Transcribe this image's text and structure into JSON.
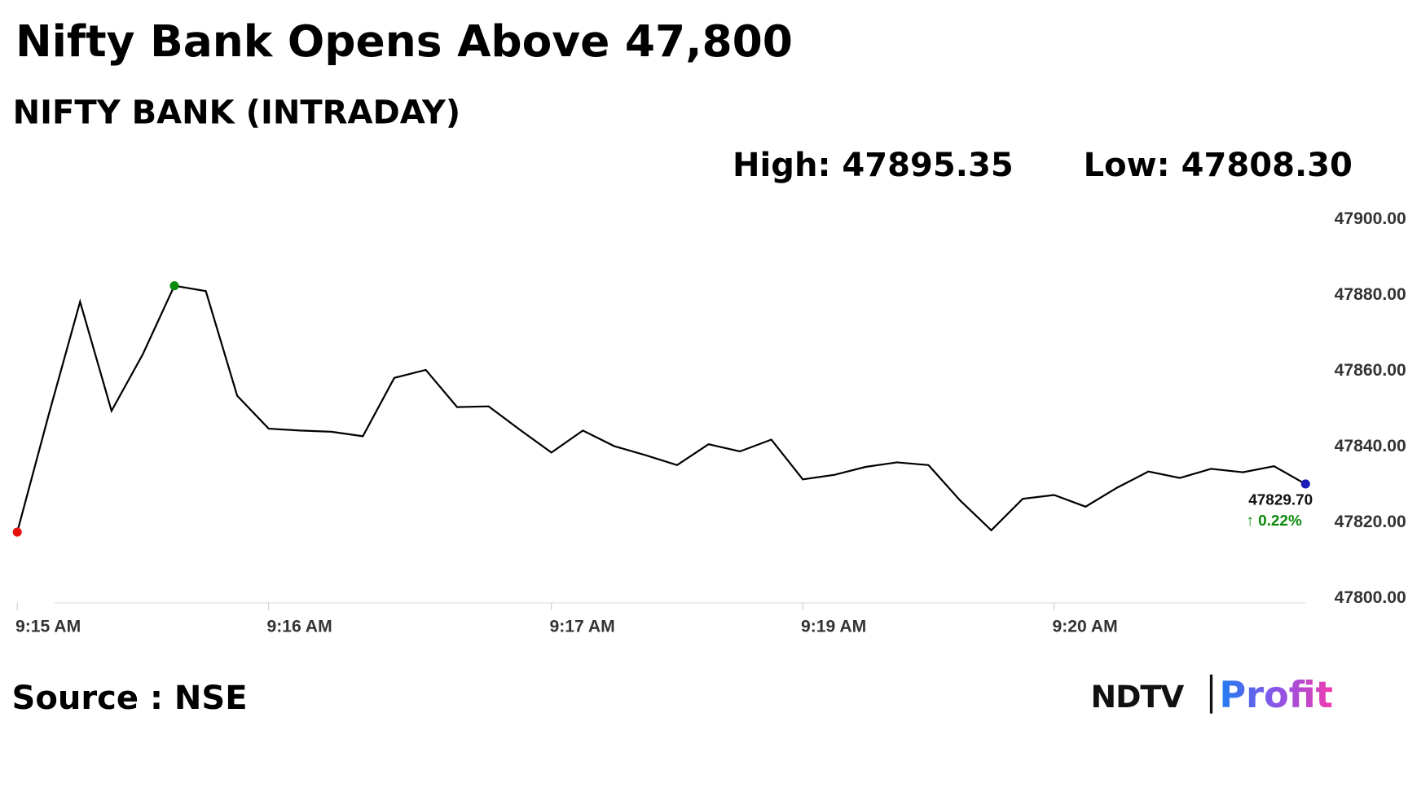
{
  "chart_data": {
    "type": "line",
    "title": "Nifty Bank Opens Above 47,800",
    "subtitle": "NIFTY BANK (INTRADAY)",
    "high_label": "High: 47895.35",
    "low_label": "Low: 47808.30",
    "last_value_label": "47829.70",
    "change_label": "↑ 0.22%",
    "source": "Source : NSE",
    "logo": {
      "left": "NDTV",
      "right": "Profit"
    },
    "categories": [
      "9:15 AM",
      null,
      null,
      null,
      null,
      null,
      null,
      null,
      "9:16 AM",
      null,
      null,
      null,
      null,
      null,
      null,
      null,
      null,
      "9:17 AM",
      null,
      null,
      null,
      null,
      null,
      null,
      null,
      "9:19 AM",
      null,
      null,
      null,
      null,
      null,
      null,
      null,
      "9:20 AM",
      null,
      null,
      null,
      null,
      null,
      null,
      null,
      null
    ],
    "series": [
      {
        "color": "#000000",
        "values": [
          47817,
          47848,
          47877.8,
          47849,
          47864,
          47882,
          47880.6,
          47853,
          47844.3,
          47843.8,
          47843.5,
          47842.3,
          47857.7,
          47859.8,
          47850,
          47850.2,
          47844,
          47838,
          47843.8,
          47839.7,
          47837.3,
          47834.7,
          47840.2,
          47838.3,
          47841.4,
          47830.9,
          47832.1,
          47834.2,
          47835.4,
          47834.7,
          47825.4,
          47817.5,
          47825.8,
          47826.8,
          47823.7,
          47828.7,
          47833,
          47831.3,
          47833.7,
          47832.8,
          47834.4,
          47829.7
        ]
      }
    ],
    "marker_colors": {
      "first": "#e8120c",
      "max": "#0a8a0a",
      "last": "#1a1ab8"
    },
    "change_color": "#0a8a0a",
    "ylim": [
      47800,
      47900
    ],
    "yticks": [
      {
        "value": 47800,
        "label": "47800.00"
      },
      {
        "value": 47820,
        "label": "47820.00"
      },
      {
        "value": 47840,
        "label": "47840.00"
      },
      {
        "value": 47860,
        "label": "47860.00"
      },
      {
        "value": 47880,
        "label": "47880.00"
      },
      {
        "value": 47900,
        "label": "47900.00"
      }
    ],
    "grid": false
  }
}
